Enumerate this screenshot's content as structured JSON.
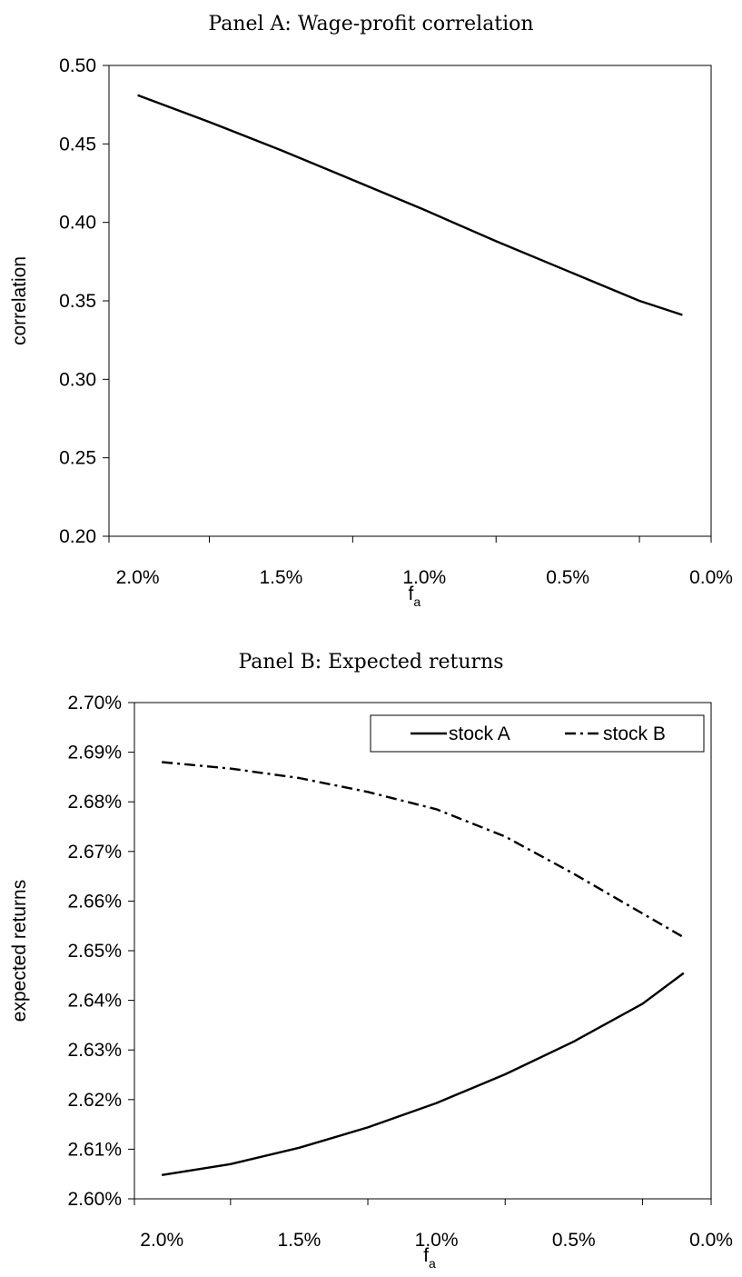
{
  "chart_data": [
    {
      "type": "line",
      "title": "Panel A: Wage-profit correlation",
      "xlabel": "f",
      "xlabel_sub": "a",
      "ylabel": "correlation",
      "x_ticks": [
        "2.0%",
        "1.5%",
        "1.0%",
        "0.5%",
        "0.0%"
      ],
      "x_tick_values": [
        2.0,
        1.5,
        1.0,
        0.5,
        0.0
      ],
      "xlim": [
        2.1,
        -0.0
      ],
      "y_ticks": [
        "0.50",
        "0.45",
        "0.40",
        "0.35",
        "0.30",
        "0.25",
        "0.20"
      ],
      "y_tick_values": [
        0.5,
        0.45,
        0.4,
        0.35,
        0.3,
        0.25,
        0.2
      ],
      "ylim": [
        0.2,
        0.5
      ],
      "grid": false,
      "series": [
        {
          "style": "solid",
          "x": [
            2.0,
            1.75,
            1.5,
            1.25,
            1.0,
            0.75,
            0.5,
            0.25,
            0.1
          ],
          "y": [
            0.481,
            0.464,
            0.446,
            0.427,
            0.408,
            0.388,
            0.369,
            0.35,
            0.341
          ]
        }
      ]
    },
    {
      "type": "line",
      "title": "Panel B: Expected returns",
      "xlabel": "f",
      "xlabel_sub": "a",
      "ylabel": "expected returns",
      "x_ticks": [
        "2.0%",
        "1.5%",
        "1.0%",
        "0.5%",
        "0.0%"
      ],
      "x_tick_values": [
        2.0,
        1.5,
        1.0,
        0.5,
        0.0
      ],
      "xlim": [
        2.1,
        -0.0
      ],
      "y_ticks": [
        "2.70%",
        "2.69%",
        "2.68%",
        "2.67%",
        "2.66%",
        "2.65%",
        "2.64%",
        "2.63%",
        "2.62%",
        "2.61%",
        "2.60%"
      ],
      "y_tick_values": [
        2.7,
        2.69,
        2.68,
        2.67,
        2.66,
        2.65,
        2.64,
        2.63,
        2.62,
        2.61,
        2.6
      ],
      "ylim": [
        2.6,
        2.7
      ],
      "grid": false,
      "legend_position": "top-right",
      "series": [
        {
          "name": "stock A",
          "style": "solid",
          "x": [
            2.0,
            1.75,
            1.5,
            1.25,
            1.0,
            0.75,
            0.5,
            0.25,
            0.1
          ],
          "y": [
            2.6048,
            2.607,
            2.6103,
            2.6144,
            2.6193,
            2.6251,
            2.6317,
            2.6393,
            2.6455
          ]
        },
        {
          "name": "stock B",
          "style": "dashdot",
          "x": [
            2.0,
            1.75,
            1.5,
            1.25,
            1.0,
            0.75,
            0.5,
            0.25,
            0.1
          ],
          "y": [
            2.688,
            2.6867,
            2.6848,
            2.682,
            2.6785,
            2.673,
            2.6655,
            2.6575,
            2.6527
          ]
        }
      ]
    }
  ]
}
